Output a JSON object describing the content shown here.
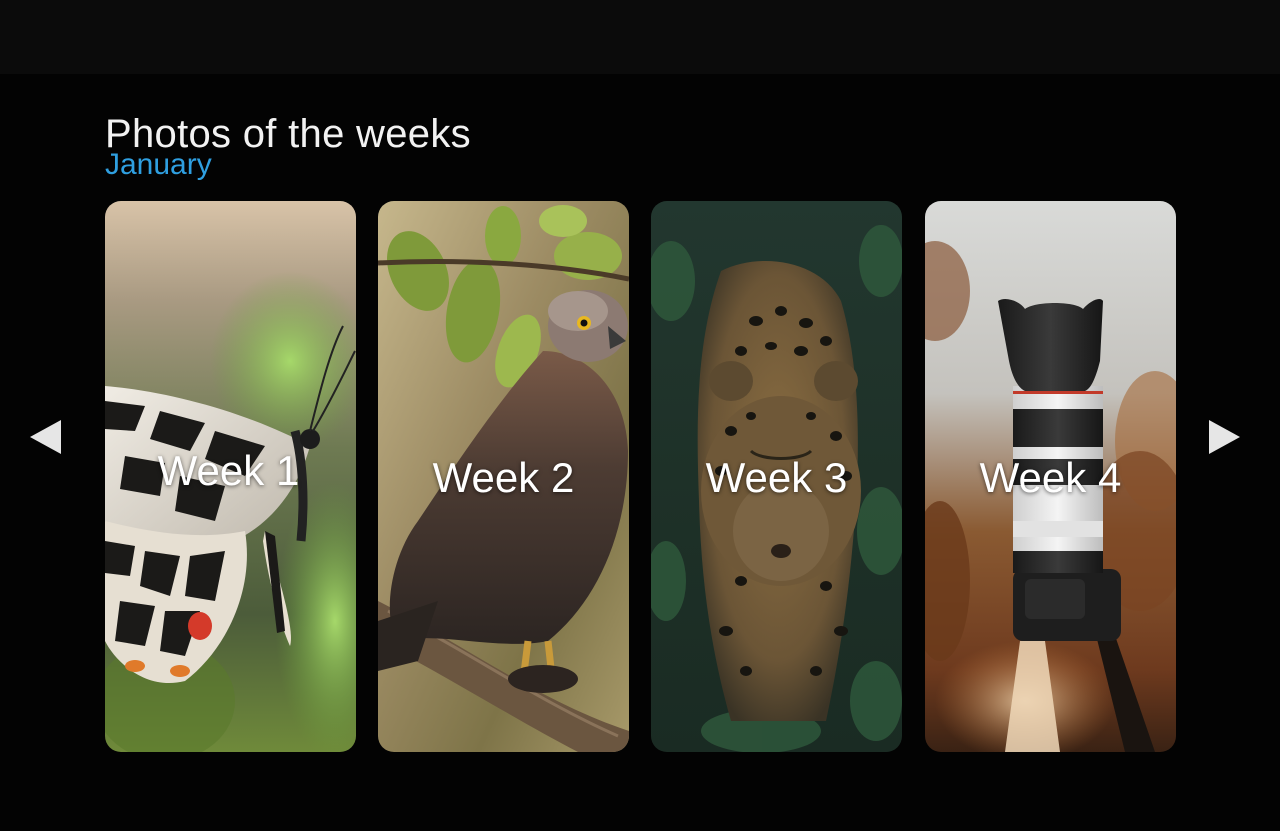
{
  "header": {
    "title": "Photos of the weeks",
    "subtitle": "January"
  },
  "carousel": {
    "prev_icon": "triangle-left-icon",
    "next_icon": "triangle-right-icon",
    "cards": [
      {
        "label": "Week 1",
        "subject": "butterfly-photo"
      },
      {
        "label": "Week 2",
        "subject": "hawk-photo"
      },
      {
        "label": "Week 3",
        "subject": "leopard-photo"
      },
      {
        "label": "Week 4",
        "subject": "camera-lens-photo"
      }
    ]
  },
  "colors": {
    "background": "#030303",
    "topbar": "#0b0b0b",
    "title": "#f2f2f2",
    "accent": "#2f9fe0"
  }
}
